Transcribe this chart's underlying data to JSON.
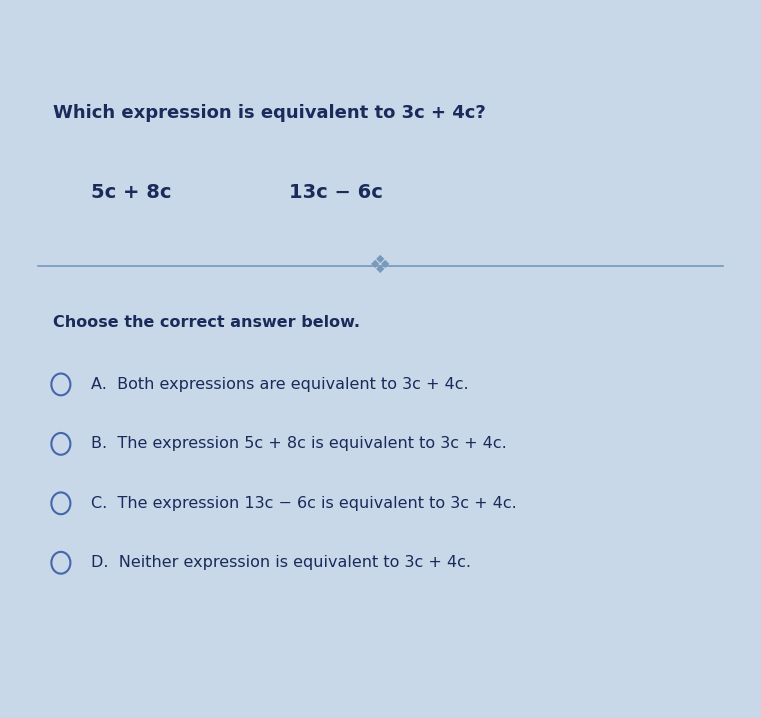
{
  "title": "Which expression is equivalent to 3c + 4c?",
  "expr1": "5c + 8c",
  "expr2": "13c − 6c",
  "prompt": "Choose the correct answer below.",
  "option_A": "A.  Both expressions are equivalent to 3c + 4c.",
  "option_B": "B.  The expression 5c + 8c is equivalent to 3c + 4c.",
  "option_C": "C.  The expression 13c − 6c is equivalent to 3c + 4c.",
  "option_D": "D.  Neither expression is equivalent to 3c + 4c.",
  "bg_color": "#c8d8e8",
  "header_color": "#2255aa",
  "text_color": "#1a2a5a",
  "circle_color": "#4466aa",
  "separator_color": "#7799bb",
  "title_fontsize": 13,
  "body_fontsize": 11.5,
  "expr_fontsize": 14
}
